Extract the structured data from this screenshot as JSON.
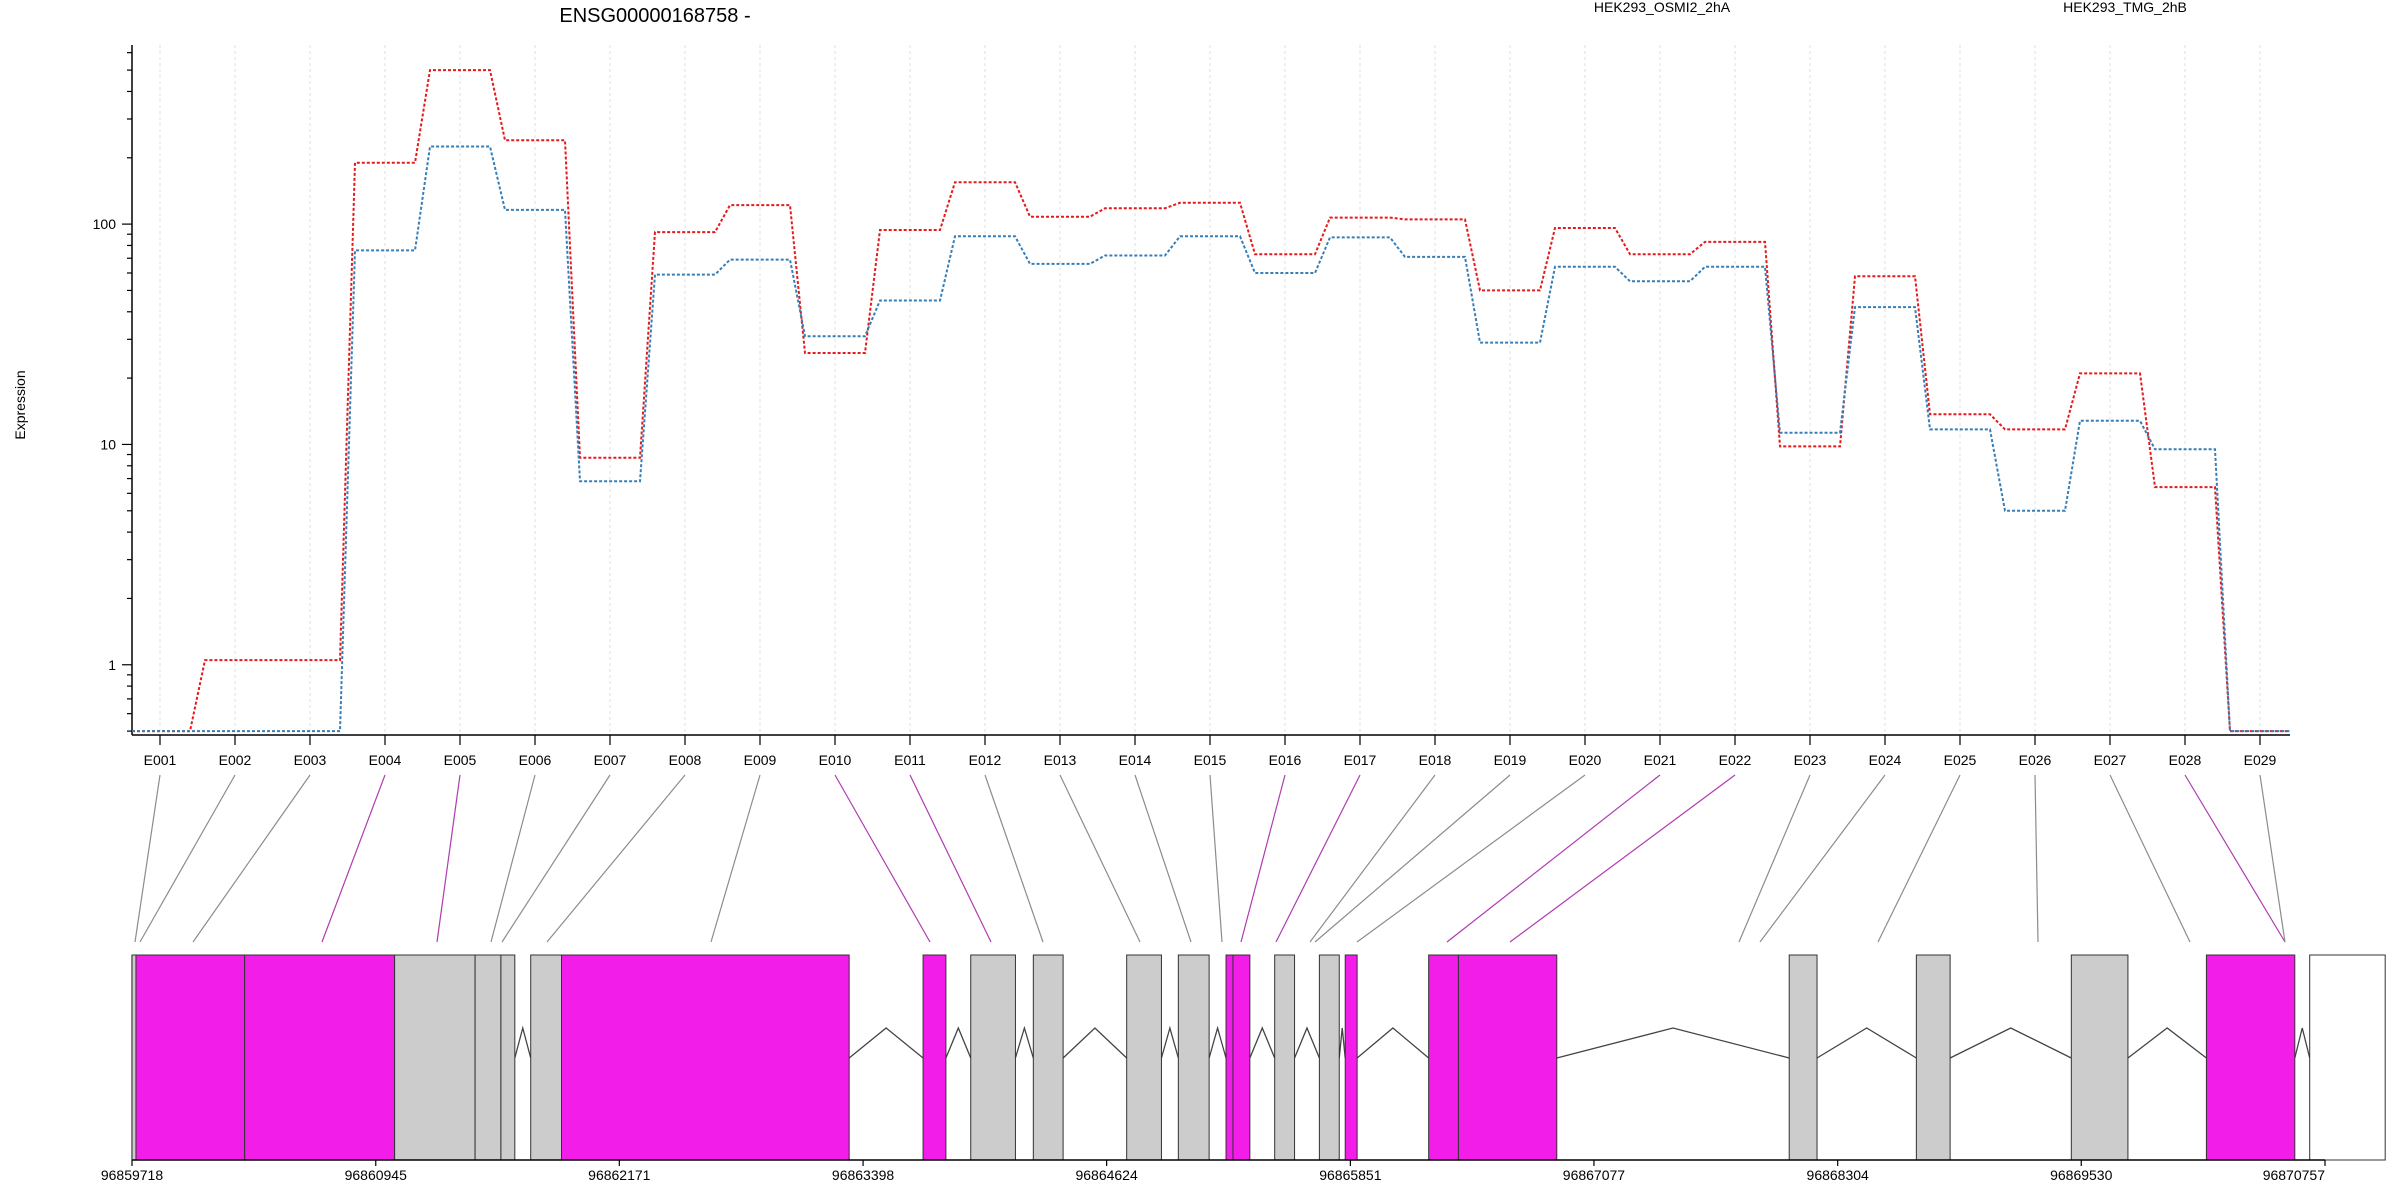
{
  "chart_data": {
    "type": "line",
    "title": "ENSG00000168758 -",
    "ylabel": "Expression",
    "yscale": "log",
    "ylim": [
      0.48,
      650
    ],
    "yticks": [
      1,
      10,
      100
    ],
    "grid": true,
    "legend_position": "top-right",
    "categories": [
      "E001",
      "E002",
      "E003",
      "E004",
      "E005",
      "E006",
      "E007",
      "E008",
      "E009",
      "E010",
      "E011",
      "E012",
      "E013",
      "E014",
      "E015",
      "E016",
      "E017",
      "E018",
      "E019",
      "E020",
      "E021",
      "E022",
      "E023",
      "E024",
      "E025",
      "E026",
      "E027",
      "E028",
      "E029"
    ],
    "series": [
      {
        "name": "HEK293_OSMI2_2hA",
        "color": "#e41a1c",
        "values": [
          0.5,
          1.05,
          1.05,
          190,
          500,
          240,
          8.7,
          92,
          122,
          26,
          94,
          155,
          108,
          118,
          125,
          73,
          107,
          105,
          50,
          96,
          73,
          83,
          9.8,
          58,
          13.7,
          11.7,
          21,
          6.4,
          0.5
        ]
      },
      {
        "name": "HEK293_TMG_2hB",
        "color": "#377eb8",
        "values": [
          0.5,
          0.5,
          0.5,
          76,
          225,
          116,
          6.8,
          59,
          69,
          31,
          45,
          88,
          66,
          72,
          88,
          60,
          87,
          71,
          29,
          64,
          55,
          64,
          11.3,
          42,
          11.7,
          5.0,
          12.8,
          9.5,
          0.5
        ]
      }
    ],
    "gene_model": {
      "x_ticks": [
        "96859718",
        "96860945",
        "96862171",
        "96863398",
        "96864624",
        "96865851",
        "96867077",
        "96868304",
        "96869530",
        "96870757"
      ],
      "exon_highlight": [
        false,
        false,
        false,
        true,
        true,
        false,
        false,
        false,
        false,
        true,
        true,
        false,
        false,
        false,
        false,
        true,
        true,
        false,
        false,
        false,
        true,
        true,
        false,
        false,
        false,
        false,
        false,
        true,
        false
      ],
      "colors": {
        "highlight": "#f21de8",
        "normal": "#cccccc",
        "utr": "#ffffff"
      }
    }
  }
}
